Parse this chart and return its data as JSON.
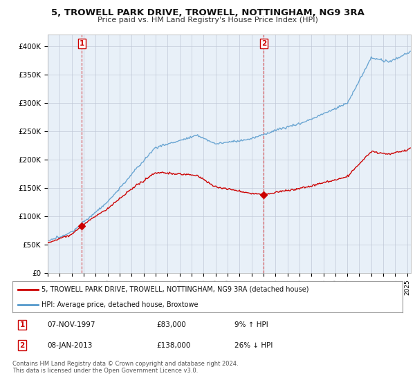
{
  "title": "5, TROWELL PARK DRIVE, TROWELL, NOTTINGHAM, NG9 3RA",
  "subtitle": "Price paid vs. HM Land Registry's House Price Index (HPI)",
  "legend_line1": "5, TROWELL PARK DRIVE, TROWELL, NOTTINGHAM, NG9 3RA (detached house)",
  "legend_line2": "HPI: Average price, detached house, Broxtowe",
  "footer": "Contains HM Land Registry data © Crown copyright and database right 2024.\nThis data is licensed under the Open Government Licence v3.0.",
  "sale1_year": 1997.85,
  "sale1_price": 83000,
  "sale2_year": 2013.03,
  "sale2_price": 138000,
  "red_color": "#cc0000",
  "blue_color": "#5599cc",
  "chart_bg": "#e8f0f8",
  "background_color": "#ffffff",
  "grid_color": "#c0c8d8",
  "ylim": [
    0,
    420000
  ],
  "xlim_start": 1995.0,
  "xlim_end": 2025.3
}
